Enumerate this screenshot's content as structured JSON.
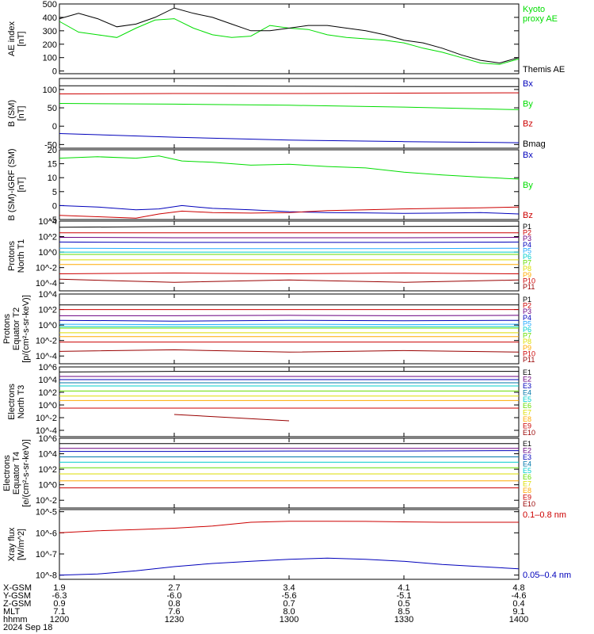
{
  "colors": {
    "black": "#000000",
    "green": "#00dd00",
    "red": "#cc0000",
    "blue": "#0000bb",
    "purple": "#6a0080",
    "teal": "#0077aa",
    "lblue": "#22aaff",
    "cyan": "#00cccc",
    "lgreen": "#66dd00",
    "yellow": "#dddd00",
    "orange": "#ffaa00",
    "dred": "#990000"
  },
  "chart_data": [
    {
      "id": "ae",
      "type": "line",
      "ylabel": "AE index\n[nT]",
      "ylim": [
        -20,
        500
      ],
      "yscale": "linear",
      "yticks": [
        0,
        100,
        200,
        300,
        400,
        500
      ],
      "yticklabels": [
        "0",
        "100",
        "200",
        "300",
        "400",
        "500"
      ],
      "x": [
        1200,
        1205,
        1210,
        1215,
        1220,
        1225,
        1230,
        1235,
        1240,
        1245,
        1250,
        1255,
        1300,
        1305,
        1310,
        1315,
        1320,
        1325,
        1330,
        1335,
        1340,
        1345,
        1350,
        1355,
        1400
      ],
      "series": [
        {
          "name": "Kyoto\nproxy AE",
          "color": "green",
          "values": [
            370,
            290,
            270,
            250,
            320,
            380,
            390,
            320,
            270,
            250,
            260,
            340,
            320,
            310,
            270,
            250,
            240,
            230,
            210,
            170,
            140,
            100,
            60,
            50,
            90
          ]
        },
        {
          "name": "Themis AE",
          "color": "black",
          "values": [
            390,
            430,
            390,
            330,
            350,
            400,
            470,
            430,
            400,
            350,
            300,
            300,
            320,
            340,
            340,
            320,
            300,
            270,
            230,
            210,
            170,
            120,
            80,
            60,
            100
          ]
        }
      ]
    },
    {
      "id": "bsm",
      "type": "line",
      "ylabel": "B  (SM)\n[nT]",
      "ylabel_sub": "x",
      "ylim": [
        -60,
        130
      ],
      "yscale": "linear",
      "yticks": [
        -50,
        0,
        50,
        100
      ],
      "yticklabels": [
        "-50",
        "0",
        "50",
        "100"
      ],
      "x": [
        1200,
        1230,
        1300,
        1330,
        1400
      ],
      "series": [
        {
          "name": "Bx",
          "color": "blue",
          "values": [
            -20,
            -30,
            -38,
            -42,
            -45
          ]
        },
        {
          "name": "By",
          "color": "green",
          "values": [
            62,
            60,
            57,
            52,
            45
          ]
        },
        {
          "name": "Bz",
          "color": "red",
          "values": [
            88,
            89,
            89,
            90,
            91
          ]
        },
        {
          "name": "Bmag",
          "color": "black",
          "values": [
            110,
            110,
            109,
            108,
            108
          ]
        }
      ]
    },
    {
      "id": "bigrf",
      "type": "line",
      "ylabel": "B (SM)-IGRF (SM)\n[nT]",
      "ylim": [
        -5,
        20
      ],
      "yscale": "linear",
      "yticks": [
        -5,
        0,
        5,
        10,
        15,
        20
      ],
      "yticklabels": [
        "-5",
        "0",
        "5",
        "10",
        "15",
        "20"
      ],
      "x": [
        1200,
        1210,
        1220,
        1226,
        1232,
        1240,
        1250,
        1300,
        1310,
        1320,
        1330,
        1340,
        1350,
        1400
      ],
      "series": [
        {
          "name": "Bx",
          "color": "blue",
          "values": [
            0,
            -0.5,
            -1.5,
            -1.2,
            0,
            -1,
            -1.5,
            -2.2,
            -2.5,
            -2.6,
            -2.8,
            -2.7,
            -2.5,
            -3
          ]
        },
        {
          "name": "By",
          "color": "green",
          "values": [
            17,
            17.5,
            17,
            17.8,
            16,
            15.5,
            14.5,
            14.8,
            14,
            13.5,
            12,
            11,
            10.2,
            9.5
          ]
        },
        {
          "name": "Bz",
          "color": "red",
          "values": [
            -3.5,
            -4,
            -4.5,
            -3,
            -2,
            -2.5,
            -2.7,
            -2.5,
            -1.8,
            -1.5,
            -1.2,
            -1,
            -0.8,
            -0.5
          ]
        }
      ]
    },
    {
      "id": "pt1",
      "type": "line",
      "ylabel": "Protons\nNorth T1",
      "ylim": [
        -5,
        4
      ],
      "yscale": "log",
      "yticks": [
        4,
        2,
        0,
        -2,
        -4
      ],
      "yticklabels": [
        "10^4",
        "10^2",
        "10^0",
        "10^-2",
        "10^-4"
      ],
      "x": [
        1200,
        1230,
        1300,
        1330,
        1400
      ],
      "series": [
        {
          "name": "P1",
          "color": "black",
          "values": [
            3.2,
            3.3,
            3.3,
            3.3,
            3.35
          ]
        },
        {
          "name": "P2",
          "color": "red",
          "values": [
            2.5,
            2.5,
            2.5,
            2.5,
            2.5
          ]
        },
        {
          "name": "P3",
          "color": "purple",
          "values": [
            1.9,
            1.85,
            1.85,
            1.85,
            1.9
          ]
        },
        {
          "name": "P4",
          "color": "blue",
          "values": [
            1.3,
            1.25,
            1.25,
            1.25,
            1.3
          ]
        },
        {
          "name": "P5",
          "color": "lblue",
          "values": [
            0.5,
            0.45,
            0.45,
            0.45,
            0.5
          ]
        },
        {
          "name": "P6",
          "color": "cyan",
          "values": [
            0.0,
            0.0,
            0.0,
            0.0,
            0.0
          ]
        },
        {
          "name": "P7",
          "color": "lgreen",
          "values": [
            -0.3,
            -0.3,
            -0.3,
            -0.3,
            -0.3
          ]
        },
        {
          "name": "P8",
          "color": "yellow",
          "values": [
            -1.0,
            -1.0,
            -1.0,
            -1.0,
            -1.0
          ]
        },
        {
          "name": "P9",
          "color": "orange",
          "values": [
            -1.6,
            -1.6,
            -1.6,
            -1.6,
            -1.6
          ]
        },
        {
          "name": "P10",
          "color": "red",
          "values": [
            -2.8,
            -2.7,
            -2.8,
            -2.7,
            -2.8
          ]
        },
        {
          "name": "P11",
          "color": "dred",
          "values": [
            -3.5,
            -3.9,
            -3.6,
            -3.9,
            -3.6
          ]
        }
      ]
    },
    {
      "id": "pt2",
      "type": "line",
      "ylabel": "Protons\nEquator T2\n[p/(cm²-s-sr-keV)]",
      "ylim": [
        -5,
        4
      ],
      "yscale": "log",
      "yticks": [
        4,
        2,
        0,
        -2,
        -4
      ],
      "yticklabels": [
        "10^4",
        "10^2",
        "10^0",
        "10^-2",
        "10^-4"
      ],
      "x": [
        1200,
        1230,
        1300,
        1330,
        1400
      ],
      "series": [
        {
          "name": "P1",
          "color": "black",
          "values": [
            2.6,
            2.6,
            2.6,
            2.6,
            2.6
          ]
        },
        {
          "name": "P2",
          "color": "red",
          "values": [
            2.0,
            2.0,
            2.0,
            2.0,
            2.0
          ]
        },
        {
          "name": "P3",
          "color": "purple",
          "values": [
            1.2,
            1.2,
            1.25,
            1.2,
            1.25
          ]
        },
        {
          "name": "P4",
          "color": "blue",
          "values": [
            0.6,
            0.5,
            0.6,
            0.55,
            0.6
          ]
        },
        {
          "name": "P5",
          "color": "lblue",
          "values": [
            0.1,
            0.05,
            0.1,
            0.05,
            0.1
          ]
        },
        {
          "name": "P6",
          "color": "cyan",
          "values": [
            -0.2,
            -0.2,
            -0.2,
            -0.2,
            -0.2
          ]
        },
        {
          "name": "P7",
          "color": "lgreen",
          "values": [
            -0.4,
            -0.4,
            -0.4,
            -0.4,
            -0.4
          ]
        },
        {
          "name": "P8",
          "color": "yellow",
          "values": [
            -1.0,
            -1.0,
            -1.0,
            -1.0,
            -1.0
          ]
        },
        {
          "name": "P9",
          "color": "orange",
          "values": [
            -1.5,
            -1.5,
            -1.5,
            -1.5,
            -1.5
          ]
        },
        {
          "name": "P10",
          "color": "red",
          "values": [
            -2.2,
            -2.2,
            -2.2,
            -2.2,
            -2.2
          ]
        },
        {
          "name": "P11",
          "color": "dred",
          "values": [
            -3.4,
            -3.2,
            -3.5,
            -3.3,
            -3.5
          ]
        }
      ]
    },
    {
      "id": "et3",
      "type": "line",
      "ylabel": "Electrons\nNorth T3",
      "ylim": [
        -5,
        6
      ],
      "yscale": "log",
      "yticks": [
        6,
        4,
        2,
        0,
        -2,
        -4
      ],
      "yticklabels": [
        "10^6",
        "10^4",
        "10^2",
        "10^0",
        "10^-2",
        "10^-4"
      ],
      "x": [
        1200,
        1230,
        1300,
        1330,
        1400
      ],
      "series": [
        {
          "name": "E1",
          "color": "black",
          "values": [
            5.2,
            5.3,
            5.3,
            5.3,
            5.3
          ]
        },
        {
          "name": "E2",
          "color": "purple",
          "values": [
            4.5,
            4.5,
            4.5,
            4.5,
            4.5
          ]
        },
        {
          "name": "E3",
          "color": "blue",
          "values": [
            4.0,
            4.0,
            4.0,
            4.0,
            4.0
          ]
        },
        {
          "name": "E4",
          "color": "teal",
          "values": [
            3.5,
            3.5,
            3.5,
            3.5,
            3.5
          ]
        },
        {
          "name": "E5",
          "color": "cyan",
          "values": [
            3.0,
            3.0,
            3.0,
            3.0,
            3.0
          ]
        },
        {
          "name": "E6",
          "color": "lgreen",
          "values": [
            2.2,
            2.2,
            2.2,
            2.2,
            2.2
          ]
        },
        {
          "name": "E7",
          "color": "yellow",
          "values": [
            1.4,
            1.4,
            1.4,
            1.4,
            1.4
          ]
        },
        {
          "name": "E8",
          "color": "orange",
          "values": [
            0.7,
            0.7,
            0.7,
            0.7,
            0.7
          ]
        },
        {
          "name": "E9",
          "color": "red",
          "values": [
            -0.5,
            -0.5,
            -0.5,
            -0.5,
            -0.5
          ]
        },
        {
          "name": "E10",
          "color": "dred",
          "values": [
            null,
            -1.5,
            -2.5,
            null,
            -2.0
          ]
        }
      ]
    },
    {
      "id": "et4",
      "type": "line",
      "ylabel": "Electrons\nEquator T4\n[e/(cm²-s-sr-keV)]",
      "ylim": [
        -3,
        6
      ],
      "yscale": "log",
      "yticks": [
        6,
        4,
        2,
        0,
        -2
      ],
      "yticklabels": [
        "10^6",
        "10^4",
        "10^2",
        "10^0",
        "10^-2"
      ],
      "x": [
        1200,
        1230,
        1300,
        1330,
        1400
      ],
      "series": [
        {
          "name": "E1",
          "color": "black",
          "values": [
            5.3,
            5.3,
            5.3,
            5.3,
            5.3
          ]
        },
        {
          "name": "E2",
          "color": "purple",
          "values": [
            4.7,
            4.7,
            4.7,
            4.7,
            4.7
          ]
        },
        {
          "name": "E3",
          "color": "blue",
          "values": [
            4.3,
            4.3,
            4.35,
            4.35,
            4.4
          ]
        },
        {
          "name": "E4",
          "color": "teal",
          "values": [
            3.6,
            3.6,
            3.6,
            3.6,
            3.6
          ]
        },
        {
          "name": "E5",
          "color": "cyan",
          "values": [
            2.9,
            2.9,
            2.9,
            2.9,
            2.9
          ]
        },
        {
          "name": "E6",
          "color": "lgreen",
          "values": [
            2.2,
            2.2,
            2.2,
            2.2,
            2.2
          ]
        },
        {
          "name": "E7",
          "color": "yellow",
          "values": [
            1.4,
            1.4,
            1.4,
            1.4,
            1.4
          ]
        },
        {
          "name": "E8",
          "color": "orange",
          "values": [
            0.5,
            0.5,
            0.5,
            0.5,
            0.5
          ]
        },
        {
          "name": "E9",
          "color": "red",
          "values": [
            -0.4,
            -0.4,
            -0.4,
            -0.4,
            -0.4
          ]
        },
        {
          "name": "E10",
          "color": "dred",
          "values": [
            -1.6,
            null,
            null,
            null,
            -1.3
          ]
        }
      ]
    },
    {
      "id": "xray",
      "type": "line",
      "ylabel": "Xray flux\n[W/m^2]",
      "ylim": [
        -8.2,
        -4.9
      ],
      "yscale": "log",
      "yticks": [
        -5,
        -6,
        -7,
        -8
      ],
      "yticklabels": [
        "10^-5",
        "10^-6",
        "10^-7",
        "10^-8"
      ],
      "x": [
        1200,
        1210,
        1220,
        1230,
        1240,
        1250,
        1300,
        1310,
        1320,
        1330,
        1340,
        1350,
        1400
      ],
      "series": [
        {
          "name": "0.1–0.8 nm",
          "color": "red",
          "values": [
            -6.0,
            -5.9,
            -5.85,
            -5.78,
            -5.68,
            -5.5,
            -5.45,
            -5.45,
            -5.46,
            -5.48,
            -5.5,
            -5.5,
            -5.5
          ]
        },
        {
          "name": "0.05–0.4 nm",
          "color": "blue",
          "values": [
            -8.0,
            -7.95,
            -7.8,
            -7.6,
            -7.45,
            -7.35,
            -7.25,
            -7.2,
            -7.25,
            -7.35,
            -7.5,
            -7.6,
            -7.7
          ]
        }
      ]
    }
  ],
  "xaxis": {
    "min": 1200,
    "max": 1400,
    "ticks": [
      1200,
      1230,
      1300,
      1330,
      1400
    ],
    "rows": [
      {
        "label": "X-GSM",
        "values": [
          "1.9",
          "2.7",
          "3.4",
          "4.1",
          "4.8"
        ]
      },
      {
        "label": "Y-GSM",
        "values": [
          "-6.3",
          "-6.0",
          "-5.6",
          "-5.1",
          "-4.6"
        ]
      },
      {
        "label": "Z-GSM",
        "values": [
          "0.9",
          "0.8",
          "0.7",
          "0.5",
          "0.4"
        ]
      },
      {
        "label": "MLT",
        "values": [
          "7.1",
          "7.6",
          "8.0",
          "8.5",
          "9.1"
        ]
      },
      {
        "label": "hhmm",
        "values": [
          "1200",
          "1230",
          "1300",
          "1330",
          "1400"
        ]
      }
    ],
    "date": "2024 Sep 18"
  }
}
